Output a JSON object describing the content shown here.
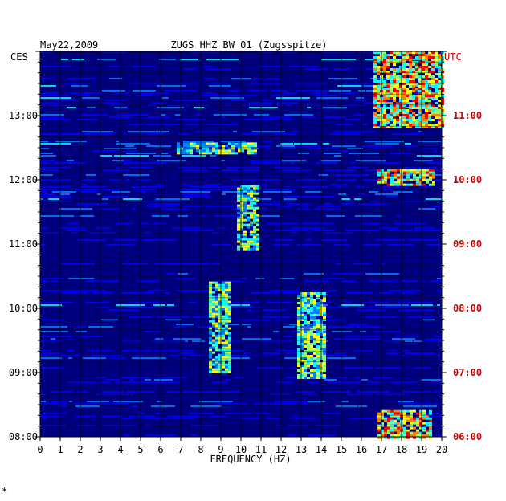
{
  "chart_data": {
    "type": "heatmap",
    "date": "May22,2009",
    "title": "ZUGS HHZ BW 01 (Zugsspitze)",
    "xlabel": "FREQUENCY (HZ)",
    "xlim": [
      0,
      20
    ],
    "x_ticks": [
      "0",
      "1",
      "2",
      "3",
      "4",
      "5",
      "6",
      "7",
      "8",
      "9",
      "10",
      "11",
      "12",
      "13",
      "14",
      "15",
      "16",
      "17",
      "18",
      "19",
      "20"
    ],
    "left_axis_label": "CES",
    "left_ticks": [
      "13:00",
      "12:00",
      "11:00",
      "10:00",
      "09:00",
      "08:00"
    ],
    "right_axis_label": "UTC",
    "right_ticks": [
      "11:00",
      "10:00",
      "09:00",
      "08:00",
      "07:00",
      "06:00"
    ],
    "time_range_utc": [
      "06:00",
      "12:00"
    ],
    "colors": {
      "background": "#00007f",
      "axis_text": "#000000",
      "utc_text": "#d40000",
      "gridline": "#000000",
      "colormap": [
        "#00008f",
        "#0000ff",
        "#0080ff",
        "#00ffff",
        "#80ff80",
        "#ffff00",
        "#ff8000",
        "#ff0000"
      ]
    },
    "energy_features": [
      {
        "freq_range_hz": [
          16.6,
          20
        ],
        "time_utc": [
          "10:50",
          "12:00"
        ],
        "level": "high"
      },
      {
        "freq_range_hz": [
          16.8,
          19.6
        ],
        "time_utc": [
          "09:55",
          "10:10"
        ],
        "level": "high"
      },
      {
        "freq_range_hz": [
          16.8,
          19.4
        ],
        "time_utc": [
          "06:00",
          "06:25"
        ],
        "level": "high"
      },
      {
        "freq_range_hz": [
          12.8,
          14.2
        ],
        "time_utc": [
          "06:55",
          "08:15"
        ],
        "level": "medium"
      },
      {
        "freq_range_hz": [
          8.4,
          9.4
        ],
        "time_utc": [
          "07:00",
          "08:25"
        ],
        "level": "medium"
      },
      {
        "freq_range_hz": [
          9.8,
          10.8
        ],
        "time_utc": [
          "08:55",
          "09:55"
        ],
        "level": "medium"
      },
      {
        "freq_range_hz": [
          6.8,
          10.8
        ],
        "time_utc": [
          "10:25",
          "10:35"
        ],
        "level": "medium"
      }
    ]
  },
  "footer_mark": "*"
}
